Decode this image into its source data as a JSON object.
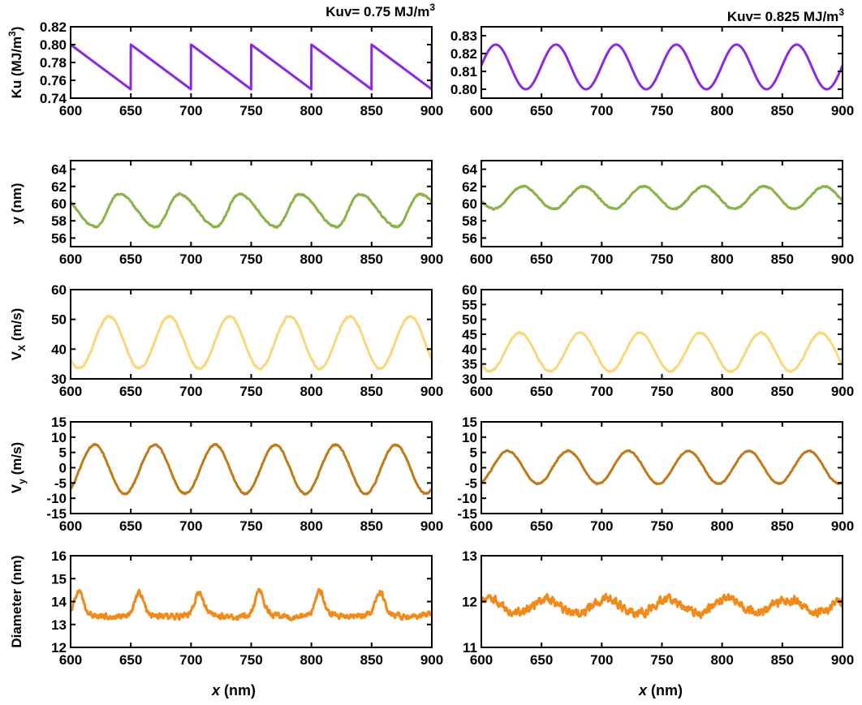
{
  "figure": {
    "column_titles": [
      {
        "prefix": "Kuv= 0.75 MJ/m",
        "sup": "3"
      },
      {
        "prefix": "Kuv= 0.825 MJ/m",
        "sup": "3"
      }
    ],
    "xlabel_italic": "x",
    "xlabel_unit": " (nm)"
  },
  "chart_data": [
    {
      "id": "ku-left",
      "type": "line",
      "line_shape": "sawtooth",
      "color": "#8a2be2",
      "xlim": [
        600,
        900
      ],
      "ylim": [
        0.74,
        0.82
      ],
      "yticks": [
        0.74,
        0.76,
        0.78,
        0.8,
        0.82
      ],
      "ytick_labels": [
        "0.74",
        "0.76",
        "0.78",
        "0.80",
        "0.82"
      ],
      "xticks": [
        600,
        650,
        700,
        750,
        800,
        850,
        900
      ],
      "xtick_labels": [
        "600",
        "650",
        "700",
        "750",
        "800",
        "850",
        "900"
      ],
      "ylabel": {
        "main": "Ku (MJ/m",
        "sup": "3",
        "tail": ")"
      },
      "period": 50,
      "min": 0.75,
      "max": 0.8,
      "noise": 0,
      "x": [
        600,
        649.9,
        650,
        699.9,
        700,
        749.9,
        750,
        799.9,
        800,
        849.9,
        850,
        899.9,
        900
      ],
      "y": [
        0.8,
        0.75,
        0.8,
        0.75,
        0.8,
        0.75,
        0.8,
        0.75,
        0.8,
        0.75,
        0.8,
        0.75,
        0.8
      ]
    },
    {
      "id": "ku-right",
      "type": "line",
      "line_shape": "sine",
      "color": "#8a2be2",
      "xlim": [
        600,
        900
      ],
      "ylim": [
        0.795,
        0.835
      ],
      "yticks": [
        0.8,
        0.81,
        0.82,
        0.83
      ],
      "ytick_labels": [
        "0.80",
        "0.81",
        "0.82",
        "0.83"
      ],
      "xticks": [
        600,
        650,
        700,
        750,
        800,
        850,
        900
      ],
      "xtick_labels": [
        "600",
        "650",
        "700",
        "750",
        "800",
        "850",
        "900"
      ],
      "ylabel": {
        "main": ""
      },
      "period": 50,
      "min": 0.8,
      "max": 0.825,
      "peak_x": 612,
      "noise": 0
    },
    {
      "id": "y-left",
      "type": "line",
      "line_shape": "skewed",
      "skew": 0.62,
      "color": "#8ab34a",
      "xlim": [
        600,
        900
      ],
      "ylim": [
        55,
        65
      ],
      "yticks": [
        56,
        58,
        60,
        62,
        64
      ],
      "ytick_labels": [
        "56",
        "58",
        "60",
        "62",
        "64"
      ],
      "xticks": [
        600,
        650,
        700,
        750,
        800,
        850,
        900
      ],
      "xtick_labels": [
        "600",
        "650",
        "700",
        "750",
        "800",
        "850",
        "900"
      ],
      "ylabel": {
        "main": "y (nm)"
      },
      "period": 50,
      "min": 57.3,
      "max": 61.1,
      "peak_x": 640,
      "noise": 0.08
    },
    {
      "id": "y-right",
      "type": "line",
      "line_shape": "sine",
      "color": "#8ab34a",
      "xlim": [
        600,
        900
      ],
      "ylim": [
        55,
        65
      ],
      "yticks": [
        56,
        58,
        60,
        62,
        64
      ],
      "ytick_labels": [
        "56",
        "58",
        "60",
        "62",
        "64"
      ],
      "xticks": [
        600,
        650,
        700,
        750,
        800,
        850,
        900
      ],
      "xtick_labels": [
        "600",
        "650",
        "700",
        "750",
        "800",
        "850",
        "900"
      ],
      "ylabel": {
        "main": ""
      },
      "period": 50,
      "min": 59.4,
      "max": 62,
      "peak_x": 635,
      "noise": 0.07
    },
    {
      "id": "vx-left",
      "type": "line",
      "line_shape": "sine",
      "color": "#f7d87a",
      "xlim": [
        600,
        900
      ],
      "ylim": [
        30,
        60
      ],
      "yticks": [
        30,
        40,
        50,
        60
      ],
      "ytick_labels": [
        "30",
        "40",
        "50",
        "60"
      ],
      "xticks": [
        600,
        650,
        700,
        750,
        800,
        850,
        900
      ],
      "xtick_labels": [
        "600",
        "650",
        "700",
        "750",
        "800",
        "850",
        "900"
      ],
      "ylabel": {
        "main": "V",
        "sub": "X",
        "tail": " (m/s)"
      },
      "period": 50,
      "min": 33.5,
      "max": 51,
      "peak_x": 632,
      "noise": 0.25
    },
    {
      "id": "vx-right",
      "type": "line",
      "line_shape": "sine",
      "color": "#f7d87a",
      "xlim": [
        600,
        900
      ],
      "ylim": [
        30,
        60
      ],
      "yticks": [
        30,
        35,
        40,
        45,
        50,
        55,
        60
      ],
      "ytick_labels": [
        "30",
        "35",
        "40",
        "45",
        "50",
        "55",
        "60"
      ],
      "xticks": [
        600,
        650,
        700,
        750,
        800,
        850,
        900
      ],
      "xtick_labels": [
        "600",
        "650",
        "700",
        "750",
        "800",
        "850",
        "900"
      ],
      "ylabel": {
        "main": ""
      },
      "period": 50,
      "min": 32.5,
      "max": 45.5,
      "peak_x": 632,
      "noise": 0.2
    },
    {
      "id": "vy-left",
      "type": "line",
      "line_shape": "sine",
      "color": "#c07a1a",
      "xlim": [
        600,
        900
      ],
      "ylim": [
        -15,
        15
      ],
      "yticks": [
        -15,
        -10,
        -5,
        0,
        5,
        10,
        15
      ],
      "ytick_labels": [
        "-15",
        "-10",
        "-5",
        "0",
        "5",
        "10",
        "15"
      ],
      "xticks": [
        600,
        650,
        700,
        750,
        800,
        850,
        900
      ],
      "xtick_labels": [
        "600",
        "650",
        "700",
        "750",
        "800",
        "850",
        "900"
      ],
      "ylabel": {
        "main": "V",
        "sub": "y",
        "tail": " (m/s)"
      },
      "period": 50,
      "min": -8.5,
      "max": 7.5,
      "peak_x": 620,
      "noise": 0.2
    },
    {
      "id": "vy-right",
      "type": "line",
      "line_shape": "sine",
      "color": "#c07a1a",
      "xlim": [
        600,
        900
      ],
      "ylim": [
        -15,
        15
      ],
      "yticks": [
        -15,
        -10,
        -5,
        0,
        5,
        10,
        15
      ],
      "ytick_labels": [
        "-15",
        "-10",
        "-5",
        "0",
        "5",
        "10",
        "15"
      ],
      "xticks": [
        600,
        650,
        700,
        750,
        800,
        850,
        900
      ],
      "xtick_labels": [
        "600",
        "650",
        "700",
        "750",
        "800",
        "850",
        "900"
      ],
      "ylabel": {
        "main": ""
      },
      "period": 50,
      "min": -5.2,
      "max": 5.5,
      "peak_x": 622,
      "noise": 0.15
    },
    {
      "id": "d-left",
      "type": "line",
      "line_shape": "spike",
      "color": "#f28a1a",
      "xlim": [
        600,
        900
      ],
      "ylim": [
        12,
        16
      ],
      "yticks": [
        12,
        13,
        14,
        15,
        16
      ],
      "ytick_labels": [
        "12",
        "13",
        "14",
        "15",
        "16"
      ],
      "xticks": [
        600,
        650,
        700,
        750,
        800,
        850,
        900
      ],
      "xtick_labels": [
        "600",
        "650",
        "700",
        "750",
        "800",
        "850",
        "900"
      ],
      "ylabel": {
        "main": "Diameter (nm)"
      },
      "period": 50,
      "min": 13.4,
      "max": 14.35,
      "peak_x": 607,
      "noise": 0.1
    },
    {
      "id": "d-right",
      "type": "line",
      "line_shape": "sine",
      "color": "#f28a1a",
      "xlim": [
        600,
        900
      ],
      "ylim": [
        11,
        13
      ],
      "yticks": [
        11,
        12,
        13
      ],
      "ytick_labels": [
        "11",
        "12",
        "13"
      ],
      "xticks": [
        600,
        650,
        700,
        750,
        800,
        850,
        900
      ],
      "xtick_labels": [
        "600",
        "650",
        "700",
        "750",
        "800",
        "850",
        "900"
      ],
      "ylabel": {
        "main": ""
      },
      "period": 50,
      "min": 11.75,
      "max": 12.05,
      "peak_x": 655,
      "noise": 0.08
    }
  ]
}
